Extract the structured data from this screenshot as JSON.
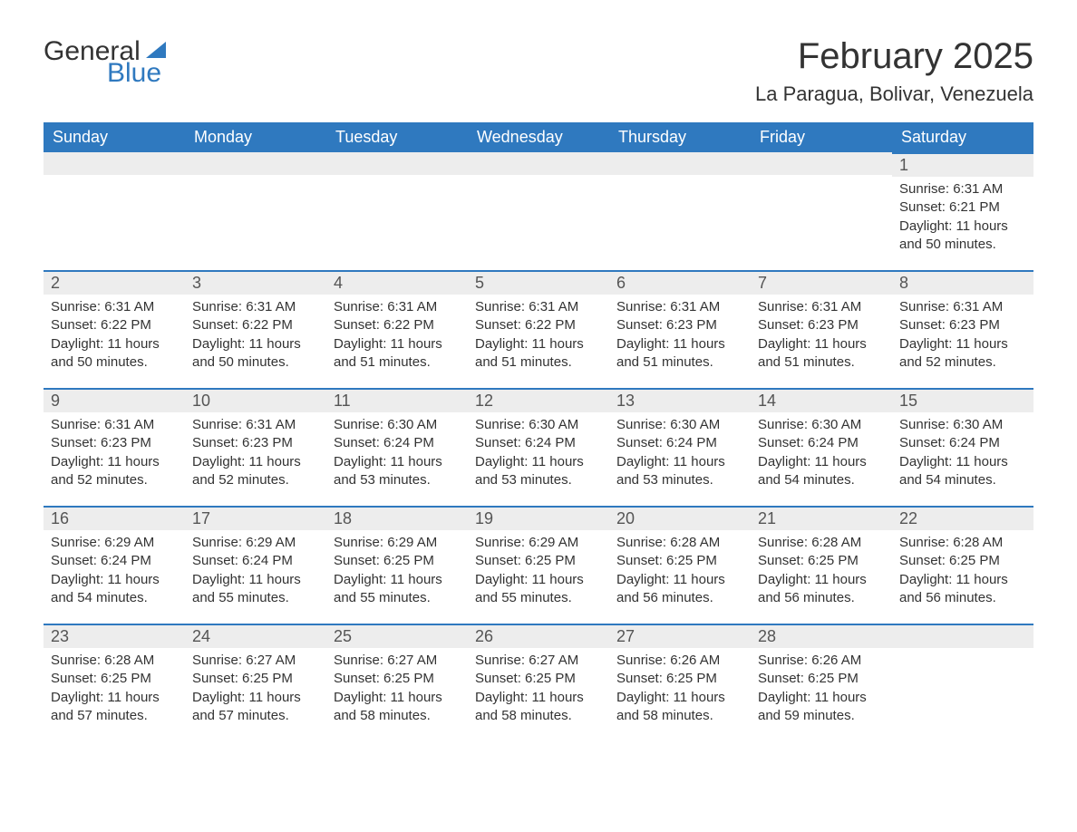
{
  "brand": {
    "word1": "General",
    "word2": "Blue",
    "accent_color": "#2f79bf"
  },
  "title": "February 2025",
  "location": "La Paragua, Bolivar, Venezuela",
  "weekday_headers": [
    "Sunday",
    "Monday",
    "Tuesday",
    "Wednesday",
    "Thursday",
    "Friday",
    "Saturday"
  ],
  "colors": {
    "header_bg": "#2f79bf",
    "header_text": "#ffffff",
    "daynum_bg": "#ededed",
    "row_border": "#2f79bf",
    "body_text": "#333333"
  },
  "weeks": [
    [
      null,
      null,
      null,
      null,
      null,
      null,
      {
        "day": "1",
        "sunrise": "Sunrise: 6:31 AM",
        "sunset": "Sunset: 6:21 PM",
        "daylight1": "Daylight: 11 hours",
        "daylight2": "and 50 minutes."
      }
    ],
    [
      {
        "day": "2",
        "sunrise": "Sunrise: 6:31 AM",
        "sunset": "Sunset: 6:22 PM",
        "daylight1": "Daylight: 11 hours",
        "daylight2": "and 50 minutes."
      },
      {
        "day": "3",
        "sunrise": "Sunrise: 6:31 AM",
        "sunset": "Sunset: 6:22 PM",
        "daylight1": "Daylight: 11 hours",
        "daylight2": "and 50 minutes."
      },
      {
        "day": "4",
        "sunrise": "Sunrise: 6:31 AM",
        "sunset": "Sunset: 6:22 PM",
        "daylight1": "Daylight: 11 hours",
        "daylight2": "and 51 minutes."
      },
      {
        "day": "5",
        "sunrise": "Sunrise: 6:31 AM",
        "sunset": "Sunset: 6:22 PM",
        "daylight1": "Daylight: 11 hours",
        "daylight2": "and 51 minutes."
      },
      {
        "day": "6",
        "sunrise": "Sunrise: 6:31 AM",
        "sunset": "Sunset: 6:23 PM",
        "daylight1": "Daylight: 11 hours",
        "daylight2": "and 51 minutes."
      },
      {
        "day": "7",
        "sunrise": "Sunrise: 6:31 AM",
        "sunset": "Sunset: 6:23 PM",
        "daylight1": "Daylight: 11 hours",
        "daylight2": "and 51 minutes."
      },
      {
        "day": "8",
        "sunrise": "Sunrise: 6:31 AM",
        "sunset": "Sunset: 6:23 PM",
        "daylight1": "Daylight: 11 hours",
        "daylight2": "and 52 minutes."
      }
    ],
    [
      {
        "day": "9",
        "sunrise": "Sunrise: 6:31 AM",
        "sunset": "Sunset: 6:23 PM",
        "daylight1": "Daylight: 11 hours",
        "daylight2": "and 52 minutes."
      },
      {
        "day": "10",
        "sunrise": "Sunrise: 6:31 AM",
        "sunset": "Sunset: 6:23 PM",
        "daylight1": "Daylight: 11 hours",
        "daylight2": "and 52 minutes."
      },
      {
        "day": "11",
        "sunrise": "Sunrise: 6:30 AM",
        "sunset": "Sunset: 6:24 PM",
        "daylight1": "Daylight: 11 hours",
        "daylight2": "and 53 minutes."
      },
      {
        "day": "12",
        "sunrise": "Sunrise: 6:30 AM",
        "sunset": "Sunset: 6:24 PM",
        "daylight1": "Daylight: 11 hours",
        "daylight2": "and 53 minutes."
      },
      {
        "day": "13",
        "sunrise": "Sunrise: 6:30 AM",
        "sunset": "Sunset: 6:24 PM",
        "daylight1": "Daylight: 11 hours",
        "daylight2": "and 53 minutes."
      },
      {
        "day": "14",
        "sunrise": "Sunrise: 6:30 AM",
        "sunset": "Sunset: 6:24 PM",
        "daylight1": "Daylight: 11 hours",
        "daylight2": "and 54 minutes."
      },
      {
        "day": "15",
        "sunrise": "Sunrise: 6:30 AM",
        "sunset": "Sunset: 6:24 PM",
        "daylight1": "Daylight: 11 hours",
        "daylight2": "and 54 minutes."
      }
    ],
    [
      {
        "day": "16",
        "sunrise": "Sunrise: 6:29 AM",
        "sunset": "Sunset: 6:24 PM",
        "daylight1": "Daylight: 11 hours",
        "daylight2": "and 54 minutes."
      },
      {
        "day": "17",
        "sunrise": "Sunrise: 6:29 AM",
        "sunset": "Sunset: 6:24 PM",
        "daylight1": "Daylight: 11 hours",
        "daylight2": "and 55 minutes."
      },
      {
        "day": "18",
        "sunrise": "Sunrise: 6:29 AM",
        "sunset": "Sunset: 6:25 PM",
        "daylight1": "Daylight: 11 hours",
        "daylight2": "and 55 minutes."
      },
      {
        "day": "19",
        "sunrise": "Sunrise: 6:29 AM",
        "sunset": "Sunset: 6:25 PM",
        "daylight1": "Daylight: 11 hours",
        "daylight2": "and 55 minutes."
      },
      {
        "day": "20",
        "sunrise": "Sunrise: 6:28 AM",
        "sunset": "Sunset: 6:25 PM",
        "daylight1": "Daylight: 11 hours",
        "daylight2": "and 56 minutes."
      },
      {
        "day": "21",
        "sunrise": "Sunrise: 6:28 AM",
        "sunset": "Sunset: 6:25 PM",
        "daylight1": "Daylight: 11 hours",
        "daylight2": "and 56 minutes."
      },
      {
        "day": "22",
        "sunrise": "Sunrise: 6:28 AM",
        "sunset": "Sunset: 6:25 PM",
        "daylight1": "Daylight: 11 hours",
        "daylight2": "and 56 minutes."
      }
    ],
    [
      {
        "day": "23",
        "sunrise": "Sunrise: 6:28 AM",
        "sunset": "Sunset: 6:25 PM",
        "daylight1": "Daylight: 11 hours",
        "daylight2": "and 57 minutes."
      },
      {
        "day": "24",
        "sunrise": "Sunrise: 6:27 AM",
        "sunset": "Sunset: 6:25 PM",
        "daylight1": "Daylight: 11 hours",
        "daylight2": "and 57 minutes."
      },
      {
        "day": "25",
        "sunrise": "Sunrise: 6:27 AM",
        "sunset": "Sunset: 6:25 PM",
        "daylight1": "Daylight: 11 hours",
        "daylight2": "and 58 minutes."
      },
      {
        "day": "26",
        "sunrise": "Sunrise: 6:27 AM",
        "sunset": "Sunset: 6:25 PM",
        "daylight1": "Daylight: 11 hours",
        "daylight2": "and 58 minutes."
      },
      {
        "day": "27",
        "sunrise": "Sunrise: 6:26 AM",
        "sunset": "Sunset: 6:25 PM",
        "daylight1": "Daylight: 11 hours",
        "daylight2": "and 58 minutes."
      },
      {
        "day": "28",
        "sunrise": "Sunrise: 6:26 AM",
        "sunset": "Sunset: 6:25 PM",
        "daylight1": "Daylight: 11 hours",
        "daylight2": "and 59 minutes."
      },
      null
    ]
  ]
}
